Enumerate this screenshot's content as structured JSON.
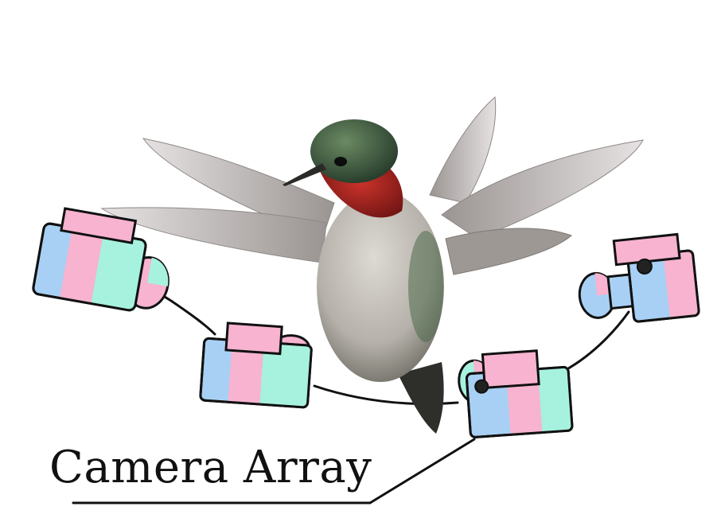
{
  "caption": "Camera Array",
  "colors": {
    "blue": "#a8d0f5",
    "pink": "#f7b3cf",
    "mint": "#a6f2df",
    "outline": "#111111",
    "throat": "#b3231e",
    "head": "#3f5e43",
    "wing": "#cfcacb",
    "belly": "#c7c3bd",
    "body_dark": "#5b5a52"
  },
  "subjects": [
    "hummingbird",
    "camera",
    "camera",
    "camera",
    "camera"
  ]
}
